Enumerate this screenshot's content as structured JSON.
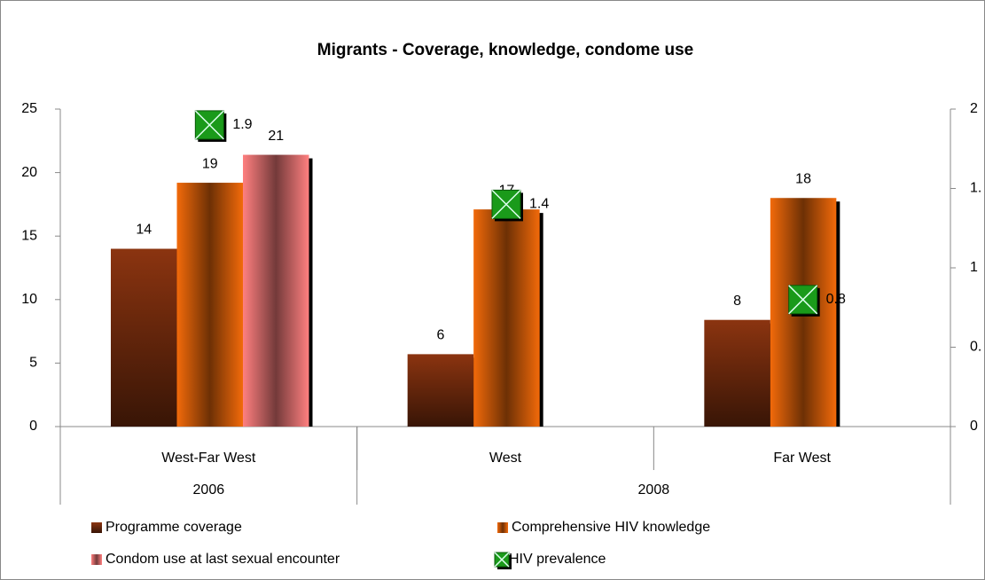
{
  "chart_data": {
    "type": "bar",
    "title": "Migrants - Coverage,  knowledge, condome use",
    "categories": [
      "West-Far West",
      "West",
      "Far West"
    ],
    "category_groups": [
      {
        "label": "2006",
        "span": 1
      },
      {
        "label": "2008",
        "span": 2
      }
    ],
    "series": [
      {
        "name": "Programme coverage",
        "color": "#8b3410",
        "values": [
          14,
          5.7,
          8.4
        ],
        "value_labels": [
          "14",
          "6",
          "8"
        ]
      },
      {
        "name": "Comprehensive HIV knowledge",
        "color": "#f26a0a",
        "values": [
          19.2,
          17.1,
          18.0
        ],
        "value_labels": [
          "19",
          "17",
          "18"
        ]
      },
      {
        "name": "Condom use at last sexual encounter",
        "color": "#ff8080",
        "values": [
          21.4,
          null,
          null
        ],
        "value_labels": [
          "21",
          null,
          null
        ]
      },
      {
        "name": "HIV prevalence",
        "color": "#1a9a1a",
        "type": "marker",
        "axis": "y2",
        "values": [
          1.9,
          1.4,
          0.8
        ]
      }
    ],
    "ylim": [
      0,
      25
    ],
    "yticks": [
      0,
      5,
      10,
      15,
      20,
      25
    ],
    "y2lim": [
      0,
      2
    ],
    "y2ticks": [
      0,
      {
        "value": 0.5,
        "label": "0."
      },
      1,
      {
        "value": 1.5,
        "label": "1."
      },
      2
    ],
    "legend": "bottom"
  }
}
